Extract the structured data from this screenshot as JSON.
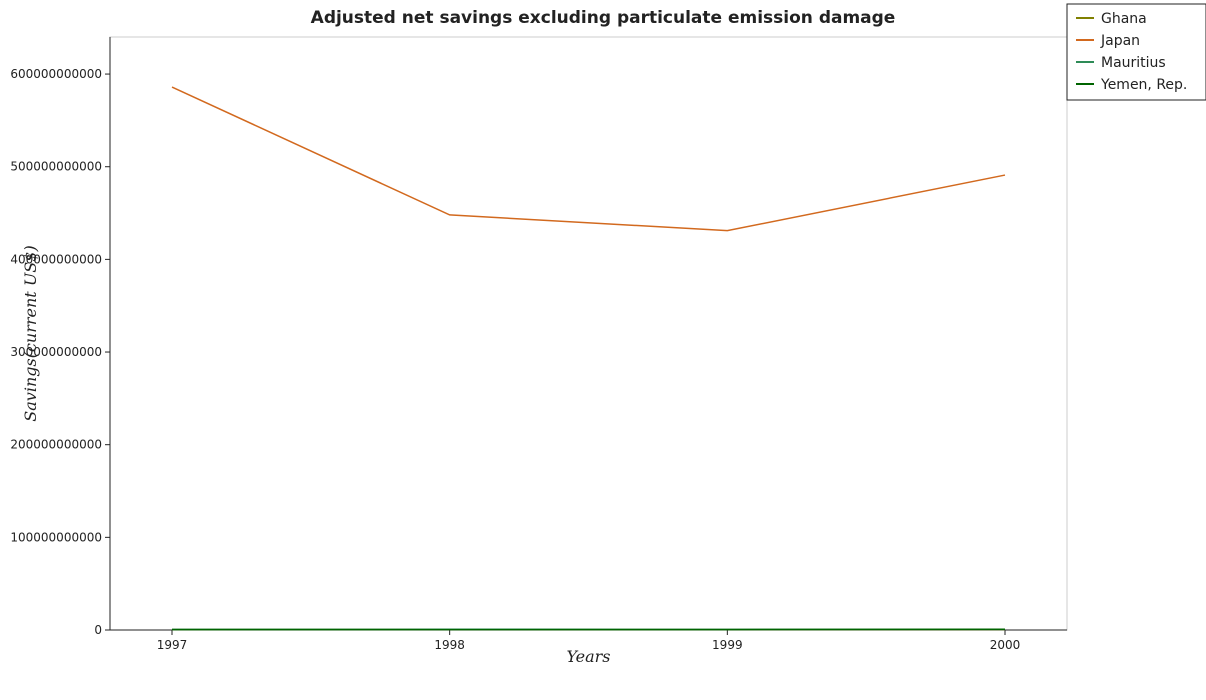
{
  "chart_data": {
    "type": "line",
    "title": "Adjusted net savings excluding particulate emission damage",
    "xlabel": "Years",
    "ylabel": "Savings(current US$)",
    "x": [
      "1997",
      "1998",
      "1999",
      "2000"
    ],
    "ylim": [
      0,
      640000000000
    ],
    "yticks": [
      0,
      100000000000,
      200000000000,
      300000000000,
      400000000000,
      500000000000,
      600000000000
    ],
    "ytick_labels": [
      "0",
      "100000000000",
      "200000000000",
      "300000000000",
      "400000000000",
      "500000000000",
      "600000000000"
    ],
    "grid": false,
    "legend_position": "top-right",
    "series": [
      {
        "name": "Ghana",
        "color": "#808000",
        "values": [
          600000000,
          650000000,
          550000000,
          500000000
        ]
      },
      {
        "name": "Japan",
        "color": "#d2691e",
        "values": [
          586000000000,
          448000000000,
          431000000000,
          491000000000
        ]
      },
      {
        "name": "Mauritius",
        "color": "#2e8b57",
        "values": [
          700000000,
          750000000,
          720000000,
          680000000
        ]
      },
      {
        "name": "Yemen, Rep.",
        "color": "#006400",
        "values": [
          400000000,
          350000000,
          450000000,
          800000000
        ]
      }
    ]
  }
}
